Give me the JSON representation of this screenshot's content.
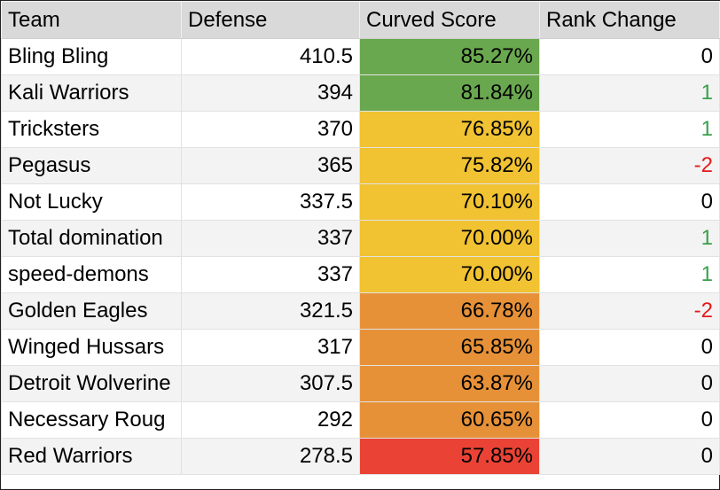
{
  "headers": [
    "Team",
    "Defense",
    "Curved Score",
    "Rank Change"
  ],
  "colors": {
    "green": "#6aa84f",
    "yellow": "#f1c232",
    "orange": "#e69138",
    "red": "#ea4335",
    "positive_text": "#38a04a",
    "negative_text": "#e31b1b"
  },
  "rows": [
    {
      "team": "Bling Bling",
      "defense": "410.5",
      "score": "85.27%",
      "score_color": "#6aa84f",
      "rank": "0"
    },
    {
      "team": "Kali Warriors",
      "defense": "394",
      "score": "81.84%",
      "score_color": "#6aa84f",
      "rank": "1"
    },
    {
      "team": "Tricksters",
      "defense": "370",
      "score": "76.85%",
      "score_color": "#f1c232",
      "rank": "1"
    },
    {
      "team": "Pegasus",
      "defense": "365",
      "score": "75.82%",
      "score_color": "#f1c232",
      "rank": "-2"
    },
    {
      "team": "Not Lucky",
      "defense": "337.5",
      "score": "70.10%",
      "score_color": "#f1c232",
      "rank": "0"
    },
    {
      "team": "Total domination",
      "defense": "337",
      "score": "70.00%",
      "score_color": "#f1c232",
      "rank": "1"
    },
    {
      "team": "speed-demons",
      "defense": "337",
      "score": "70.00%",
      "score_color": "#f1c232",
      "rank": "1"
    },
    {
      "team": "Golden Eagles",
      "defense": "321.5",
      "score": "66.78%",
      "score_color": "#e69138",
      "rank": "-2"
    },
    {
      "team": "Winged Hussars",
      "defense": "317",
      "score": "65.85%",
      "score_color": "#e69138",
      "rank": "0"
    },
    {
      "team": "Detroit Wolverine",
      "defense": "307.5",
      "score": "63.87%",
      "score_color": "#e69138",
      "rank": "0"
    },
    {
      "team": "Necessary Roug",
      "defense": "292",
      "score": "60.65%",
      "score_color": "#e69138",
      "rank": "0"
    },
    {
      "team": "Red Warriors",
      "defense": "278.5",
      "score": "57.85%",
      "score_color": "#ea4335",
      "rank": "0"
    }
  ]
}
